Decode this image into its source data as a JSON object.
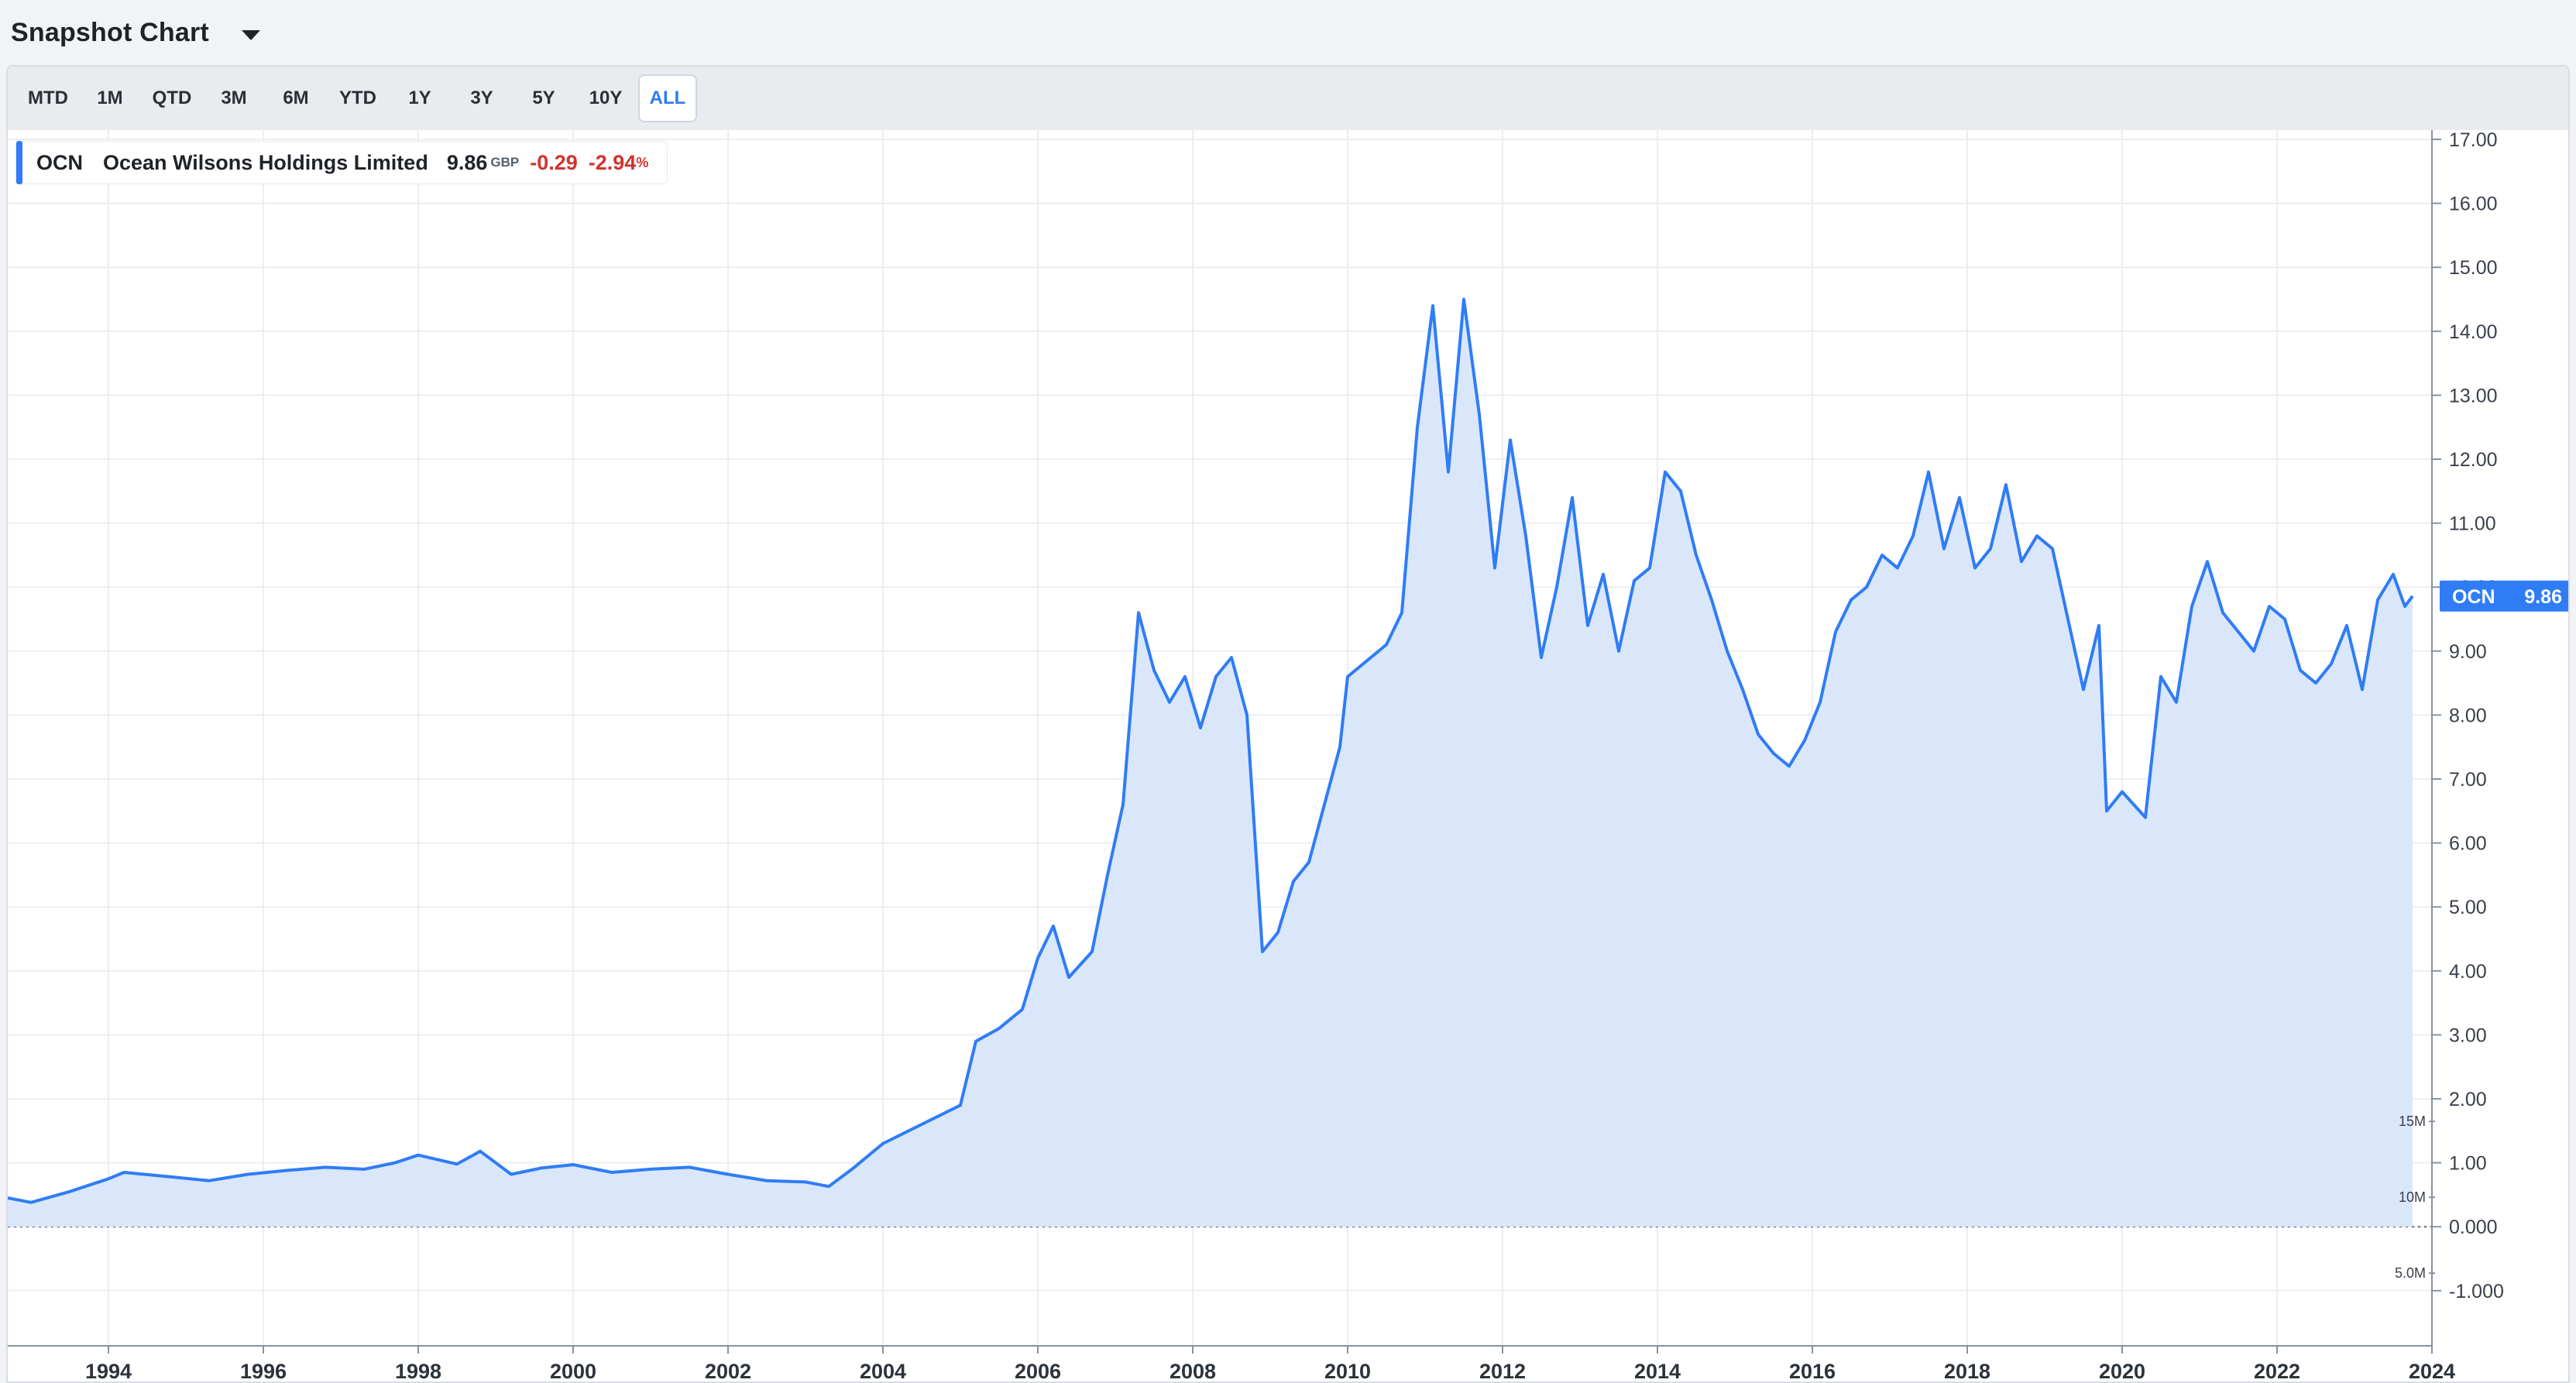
{
  "header": {
    "title": "Snapshot Chart"
  },
  "range_buttons": [
    "MTD",
    "1M",
    "QTD",
    "3M",
    "6M",
    "YTD",
    "1Y",
    "3Y",
    "5Y",
    "10Y",
    "ALL"
  ],
  "range_selected": "ALL",
  "legend": {
    "ticker": "OCN",
    "name": "Ocean Wilsons Holdings Limited",
    "price": "9.86",
    "currency": "GBP",
    "change": "-0.29",
    "change_pct": "-2.94",
    "pct_sign": "%"
  },
  "price_flag": {
    "ticker": "OCN",
    "value": "9.86"
  },
  "colors": {
    "line": "#2f7cf6",
    "area": "#d8e6fb",
    "negative": "#d0332e",
    "accent": "#2d7bf0"
  },
  "chart_data": {
    "type": "area",
    "title": "",
    "xlabel": "",
    "ylabel": "",
    "x_range": [
      1992.7,
      2024.0
    ],
    "ylim": [
      -1.0,
      17.0
    ],
    "y_ticks": [
      "17.00",
      "16.00",
      "15.00",
      "14.00",
      "13.00",
      "12.00",
      "11.00",
      "10.00",
      "9.00",
      "8.00",
      "7.00",
      "6.00",
      "5.00",
      "4.00",
      "3.00",
      "2.00",
      "1.00",
      "0.000",
      "-1.000"
    ],
    "x_tick_labels": [
      "1994",
      "1996",
      "1998",
      "2000",
      "2002",
      "2004",
      "2006",
      "2008",
      "2010",
      "2012",
      "2014",
      "2016",
      "2018",
      "2020",
      "2022",
      "2024"
    ],
    "volume_ticks": [
      "15M",
      "10M",
      "5.0M"
    ],
    "grid": true,
    "legend_position": "top-left",
    "series": [
      {
        "name": "OCN",
        "points": [
          [
            1992.7,
            0.45
          ],
          [
            1993.0,
            0.38
          ],
          [
            1993.5,
            0.55
          ],
          [
            1994.0,
            0.75
          ],
          [
            1994.2,
            0.85
          ],
          [
            1994.8,
            0.78
          ],
          [
            1995.3,
            0.72
          ],
          [
            1995.8,
            0.82
          ],
          [
            1996.3,
            0.88
          ],
          [
            1996.8,
            0.93
          ],
          [
            1997.3,
            0.9
          ],
          [
            1997.7,
            1.0
          ],
          [
            1998.0,
            1.12
          ],
          [
            1998.5,
            0.98
          ],
          [
            1998.8,
            1.18
          ],
          [
            1999.2,
            0.82
          ],
          [
            1999.6,
            0.92
          ],
          [
            2000.0,
            0.97
          ],
          [
            2000.5,
            0.85
          ],
          [
            2001.0,
            0.9
          ],
          [
            2001.5,
            0.93
          ],
          [
            2002.0,
            0.82
          ],
          [
            2002.5,
            0.72
          ],
          [
            2003.0,
            0.7
          ],
          [
            2003.3,
            0.63
          ],
          [
            2003.6,
            0.9
          ],
          [
            2004.0,
            1.3
          ],
          [
            2004.5,
            1.6
          ],
          [
            2005.0,
            1.9
          ],
          [
            2005.2,
            2.9
          ],
          [
            2005.5,
            3.1
          ],
          [
            2005.8,
            3.4
          ],
          [
            2006.0,
            4.2
          ],
          [
            2006.2,
            4.7
          ],
          [
            2006.4,
            3.9
          ],
          [
            2006.7,
            4.3
          ],
          [
            2006.9,
            5.5
          ],
          [
            2007.1,
            6.6
          ],
          [
            2007.3,
            9.6
          ],
          [
            2007.5,
            8.7
          ],
          [
            2007.7,
            8.2
          ],
          [
            2007.9,
            8.6
          ],
          [
            2008.1,
            7.8
          ],
          [
            2008.3,
            8.6
          ],
          [
            2008.5,
            8.9
          ],
          [
            2008.7,
            8.0
          ],
          [
            2008.9,
            4.3
          ],
          [
            2009.1,
            4.6
          ],
          [
            2009.3,
            5.4
          ],
          [
            2009.5,
            5.7
          ],
          [
            2009.7,
            6.6
          ],
          [
            2009.9,
            7.5
          ],
          [
            2010.0,
            8.6
          ],
          [
            2010.3,
            8.9
          ],
          [
            2010.5,
            9.1
          ],
          [
            2010.7,
            9.6
          ],
          [
            2010.9,
            12.5
          ],
          [
            2011.1,
            14.4
          ],
          [
            2011.3,
            11.8
          ],
          [
            2011.5,
            14.5
          ],
          [
            2011.7,
            12.7
          ],
          [
            2011.9,
            10.3
          ],
          [
            2012.1,
            12.3
          ],
          [
            2012.3,
            10.8
          ],
          [
            2012.5,
            8.9
          ],
          [
            2012.7,
            10.0
          ],
          [
            2012.9,
            11.4
          ],
          [
            2013.1,
            9.4
          ],
          [
            2013.3,
            10.2
          ],
          [
            2013.5,
            9.0
          ],
          [
            2013.7,
            10.1
          ],
          [
            2013.9,
            10.3
          ],
          [
            2014.1,
            11.8
          ],
          [
            2014.3,
            11.5
          ],
          [
            2014.5,
            10.5
          ],
          [
            2014.7,
            9.8
          ],
          [
            2014.9,
            9.0
          ],
          [
            2015.1,
            8.4
          ],
          [
            2015.3,
            7.7
          ],
          [
            2015.5,
            7.4
          ],
          [
            2015.7,
            7.2
          ],
          [
            2015.9,
            7.6
          ],
          [
            2016.1,
            8.2
          ],
          [
            2016.3,
            9.3
          ],
          [
            2016.5,
            9.8
          ],
          [
            2016.7,
            10.0
          ],
          [
            2016.9,
            10.5
          ],
          [
            2017.1,
            10.3
          ],
          [
            2017.3,
            10.8
          ],
          [
            2017.5,
            11.8
          ],
          [
            2017.7,
            10.6
          ],
          [
            2017.9,
            11.4
          ],
          [
            2018.1,
            10.3
          ],
          [
            2018.3,
            10.6
          ],
          [
            2018.5,
            11.6
          ],
          [
            2018.7,
            10.4
          ],
          [
            2018.9,
            10.8
          ],
          [
            2019.1,
            10.6
          ],
          [
            2019.3,
            9.5
          ],
          [
            2019.5,
            8.4
          ],
          [
            2019.7,
            9.4
          ],
          [
            2019.8,
            6.5
          ],
          [
            2020.0,
            6.8
          ],
          [
            2020.3,
            6.4
          ],
          [
            2020.5,
            8.6
          ],
          [
            2020.7,
            8.2
          ],
          [
            2020.9,
            9.7
          ],
          [
            2021.1,
            10.4
          ],
          [
            2021.3,
            9.6
          ],
          [
            2021.5,
            9.3
          ],
          [
            2021.7,
            9.0
          ],
          [
            2021.9,
            9.7
          ],
          [
            2022.1,
            9.5
          ],
          [
            2022.3,
            8.7
          ],
          [
            2022.5,
            8.5
          ],
          [
            2022.7,
            8.8
          ],
          [
            2022.9,
            9.4
          ],
          [
            2023.1,
            8.4
          ],
          [
            2023.3,
            9.8
          ],
          [
            2023.5,
            10.2
          ],
          [
            2023.65,
            9.7
          ],
          [
            2023.75,
            9.86
          ]
        ]
      }
    ]
  }
}
